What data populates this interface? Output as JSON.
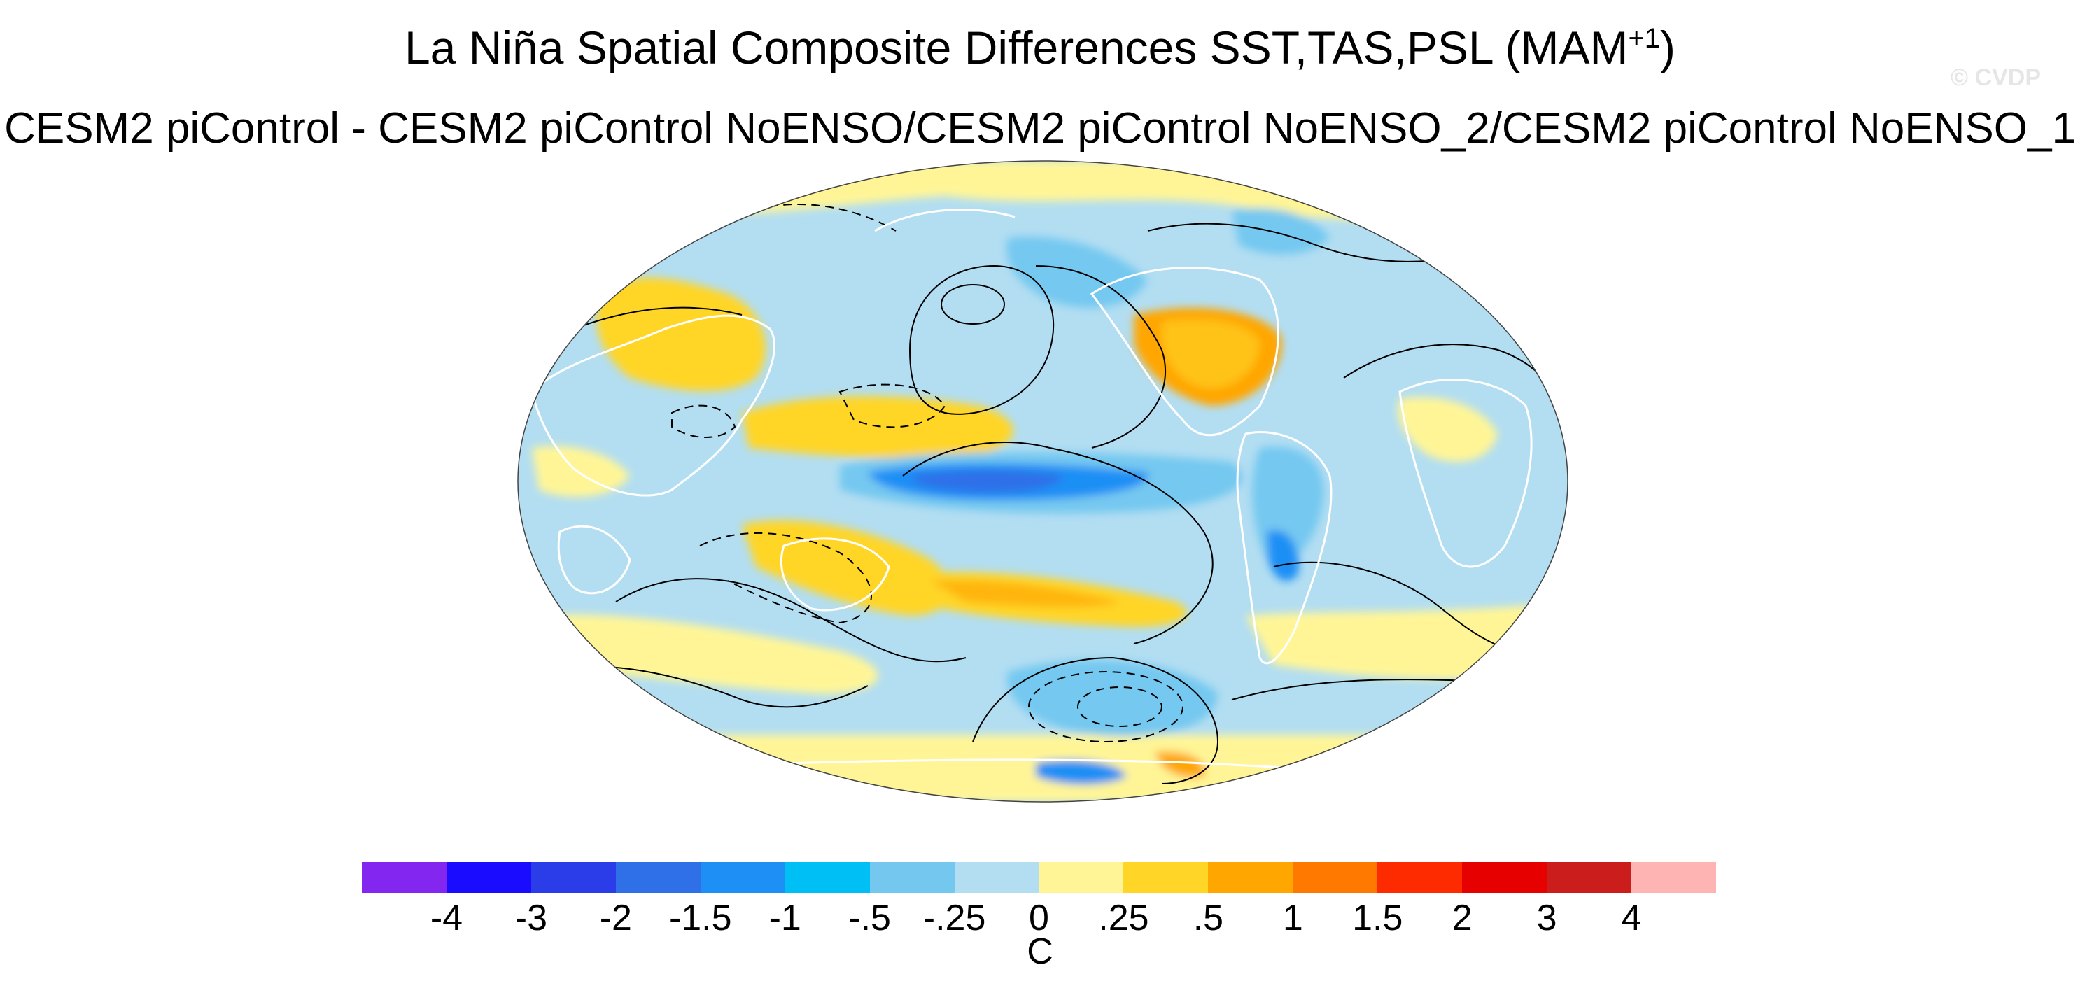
{
  "header": {
    "title_main": "La Niña Spatial Composite Differences SST,TAS,PSL (MAM",
    "title_sup": "+1",
    "title_close": ")",
    "subtitle": "CESM2 piControl - CESM2 piControl NoENSO/CESM2 piControl NoENSO_2/CESM2 piControl NoENSO_1",
    "watermark": "© CVDP"
  },
  "map": {
    "projection": "Robinson (Pacific-centered)",
    "fill_field": "SST/TAS composite difference",
    "contour_field": "PSL",
    "continent_outline_color": "#ffffff"
  },
  "colorbar": {
    "units": "C",
    "colors": [
      "#8226f0",
      "#1a0dff",
      "#2a3de8",
      "#2f6fe8",
      "#1e8ff5",
      "#00bff5",
      "#74c8f0",
      "#b3def2",
      "#fff596",
      "#ffd527",
      "#ffa600",
      "#ff7800",
      "#ff2b00",
      "#e60000",
      "#cc1d1d",
      "#ffb4b4"
    ],
    "labels": [
      "-4",
      "-3",
      "-2",
      "-1.5",
      "-1",
      "-.5",
      "-.25",
      "0",
      ".25",
      ".5",
      "1",
      "1.5",
      "2",
      "3",
      "4"
    ]
  }
}
